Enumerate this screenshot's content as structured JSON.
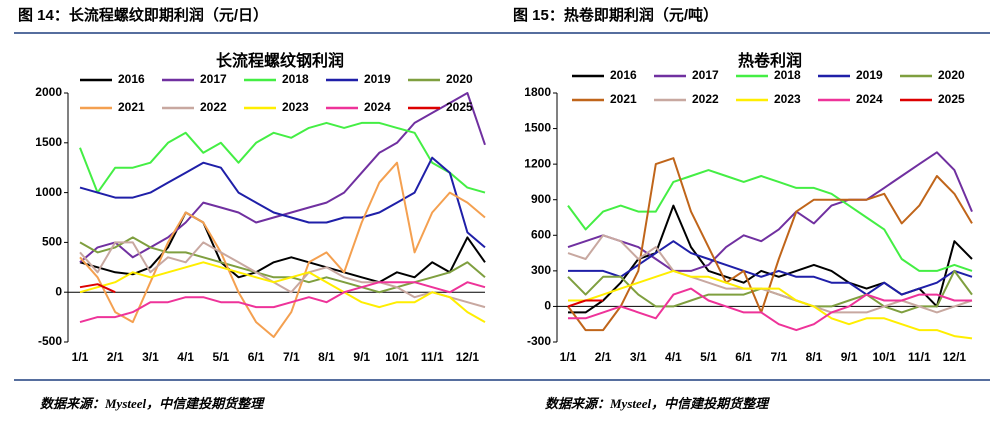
{
  "chart_data": [
    {
      "type": "line",
      "figure_label": "图 14：长流程螺纹即期利润（元/日）",
      "title": "长流程螺纹钢利润",
      "source": "数据来源：Mysteel，中信建投期货整理",
      "categories": [
        "1/1",
        null,
        "2/1",
        null,
        "3/1",
        null,
        "4/1",
        null,
        "5/1",
        null,
        "6/1",
        null,
        "7/1",
        null,
        "8/1",
        null,
        "9/1",
        null,
        "10/1",
        null,
        "11/1",
        null,
        "12/1",
        null
      ],
      "ylim": [
        -500,
        2000
      ],
      "yticks": [
        2000,
        1500,
        1000,
        500,
        0,
        -500
      ],
      "series": [
        {
          "name": "2016",
          "color": "#000000",
          "values": [
            300,
            250,
            200,
            180,
            250,
            450,
            800,
            700,
            300,
            150,
            200,
            300,
            350,
            300,
            250,
            200,
            150,
            100,
            200,
            150,
            300,
            200,
            550,
            300
          ]
        },
        {
          "name": "2017",
          "color": "#7030a0",
          "values": [
            300,
            450,
            500,
            350,
            450,
            550,
            700,
            900,
            850,
            800,
            700,
            750,
            800,
            850,
            900,
            1000,
            1200,
            1400,
            1500,
            1700,
            1800,
            1900,
            2000,
            1480
          ]
        },
        {
          "name": "2018",
          "color": "#44ee44",
          "values": [
            1450,
            1000,
            1250,
            1250,
            1300,
            1500,
            1600,
            1400,
            1500,
            1300,
            1500,
            1600,
            1550,
            1650,
            1700,
            1650,
            1700,
            1700,
            1650,
            1600,
            1300,
            1200,
            1050,
            1000
          ]
        },
        {
          "name": "2019",
          "color": "#1f1fa8",
          "values": [
            1050,
            1000,
            950,
            950,
            1000,
            1100,
            1200,
            1300,
            1250,
            1000,
            900,
            800,
            750,
            700,
            700,
            750,
            750,
            800,
            900,
            1000,
            1350,
            1200,
            600,
            450
          ]
        },
        {
          "name": "2020",
          "color": "#7f9f3f",
          "values": [
            500,
            400,
            450,
            550,
            450,
            400,
            400,
            350,
            300,
            250,
            200,
            150,
            150,
            100,
            150,
            100,
            50,
            0,
            50,
            100,
            150,
            200,
            300,
            150
          ]
        },
        {
          "name": "2021",
          "color": "#f4a050",
          "values": [
            350,
            150,
            -200,
            -300,
            100,
            500,
            800,
            700,
            400,
            0,
            -300,
            -450,
            -200,
            300,
            400,
            200,
            700,
            1100,
            1300,
            400,
            800,
            1000,
            900,
            750
          ]
        },
        {
          "name": "2022",
          "color": "#c8a8a0",
          "values": [
            400,
            200,
            500,
            500,
            200,
            350,
            300,
            500,
            400,
            300,
            200,
            100,
            0,
            200,
            250,
            150,
            100,
            100,
            50,
            -50,
            0,
            -50,
            -100,
            -150
          ]
        },
        {
          "name": "2023",
          "color": "#ffee00",
          "values": [
            0,
            50,
            100,
            200,
            150,
            200,
            250,
            300,
            250,
            200,
            150,
            100,
            150,
            200,
            100,
            0,
            -100,
            -150,
            -100,
            -100,
            0,
            -50,
            -200,
            -300
          ]
        },
        {
          "name": "2024",
          "color": "#ee3399",
          "values": [
            -300,
            -250,
            -250,
            -200,
            -100,
            -100,
            -50,
            -50,
            -100,
            -100,
            -150,
            -150,
            -100,
            -50,
            -100,
            0,
            50,
            100,
            100,
            100,
            50,
            0,
            100,
            50
          ]
        },
        {
          "name": "2025",
          "color": "#dd0000",
          "values": [
            50,
            80,
            0,
            null,
            null,
            null,
            null,
            null,
            null,
            null,
            null,
            null,
            null,
            null,
            null,
            null,
            null,
            null,
            null,
            null,
            null,
            null,
            null,
            null
          ]
        }
      ]
    },
    {
      "type": "line",
      "figure_label": "图 15：热卷即期利润（元/吨）",
      "title": "热卷利润",
      "source": "数据来源：Mysteel，中信建投期货整理",
      "categories": [
        "1/1",
        null,
        "2/1",
        null,
        "3/1",
        null,
        "4/1",
        null,
        "5/1",
        null,
        "6/1",
        null,
        "7/1",
        null,
        "8/1",
        null,
        "9/1",
        null,
        "10/1",
        null,
        "11/1",
        null,
        "12/1",
        null
      ],
      "ylim": [
        -300,
        1800
      ],
      "yticks": [
        1800,
        1500,
        1200,
        900,
        600,
        300,
        0,
        -300
      ],
      "series": [
        {
          "name": "2016",
          "color": "#000000",
          "values": [
            -50,
            -50,
            50,
            200,
            400,
            450,
            850,
            500,
            300,
            250,
            200,
            300,
            250,
            300,
            350,
            300,
            200,
            150,
            200,
            100,
            150,
            0,
            550,
            400
          ]
        },
        {
          "name": "2017",
          "color": "#7030a0",
          "values": [
            500,
            550,
            600,
            550,
            500,
            400,
            300,
            300,
            350,
            500,
            600,
            550,
            650,
            800,
            700,
            850,
            900,
            900,
            1000,
            1100,
            1200,
            1300,
            1150,
            800
          ]
        },
        {
          "name": "2018",
          "color": "#44ee44",
          "values": [
            850,
            650,
            800,
            850,
            800,
            800,
            1050,
            1100,
            1150,
            1100,
            1050,
            1100,
            1050,
            1000,
            1000,
            950,
            850,
            750,
            650,
            400,
            300,
            300,
            350,
            300
          ]
        },
        {
          "name": "2019",
          "color": "#1f1fa8",
          "values": [
            300,
            300,
            300,
            250,
            350,
            450,
            550,
            450,
            400,
            350,
            300,
            250,
            300,
            250,
            250,
            200,
            200,
            100,
            200,
            100,
            150,
            200,
            300,
            250
          ]
        },
        {
          "name": "2020",
          "color": "#7f9f3f",
          "values": [
            250,
            100,
            250,
            250,
            100,
            0,
            0,
            50,
            100,
            100,
            100,
            150,
            100,
            50,
            0,
            0,
            50,
            100,
            0,
            -50,
            0,
            0,
            300,
            100
          ]
        },
        {
          "name": "2021",
          "color": "#c0651a",
          "values": [
            0,
            -200,
            -200,
            0,
            300,
            1200,
            1250,
            800,
            500,
            200,
            300,
            -50,
            400,
            800,
            900,
            900,
            900,
            900,
            950,
            700,
            850,
            1100,
            950,
            700
          ]
        },
        {
          "name": "2022",
          "color": "#c8a8a0",
          "values": [
            450,
            400,
            600,
            550,
            400,
            500,
            300,
            250,
            200,
            150,
            150,
            150,
            100,
            50,
            0,
            -50,
            -50,
            -50,
            0,
            50,
            0,
            -50,
            0,
            50
          ]
        },
        {
          "name": "2023",
          "color": "#ffee00",
          "values": [
            50,
            50,
            100,
            150,
            200,
            250,
            300,
            250,
            250,
            200,
            150,
            150,
            150,
            50,
            0,
            -100,
            -150,
            -100,
            -100,
            -150,
            -200,
            -200,
            -250,
            -270
          ]
        },
        {
          "name": "2024",
          "color": "#ee3399",
          "values": [
            -100,
            -100,
            -50,
            0,
            -50,
            -100,
            100,
            150,
            50,
            0,
            -50,
            -50,
            -150,
            -200,
            -150,
            -50,
            0,
            100,
            50,
            50,
            100,
            100,
            50,
            50
          ]
        },
        {
          "name": "2025",
          "color": "#dd0000",
          "values": [
            0,
            50,
            50,
            null,
            null,
            null,
            null,
            null,
            null,
            null,
            null,
            null,
            null,
            null,
            null,
            null,
            null,
            null,
            null,
            null,
            null,
            null,
            null,
            null
          ]
        }
      ]
    }
  ]
}
